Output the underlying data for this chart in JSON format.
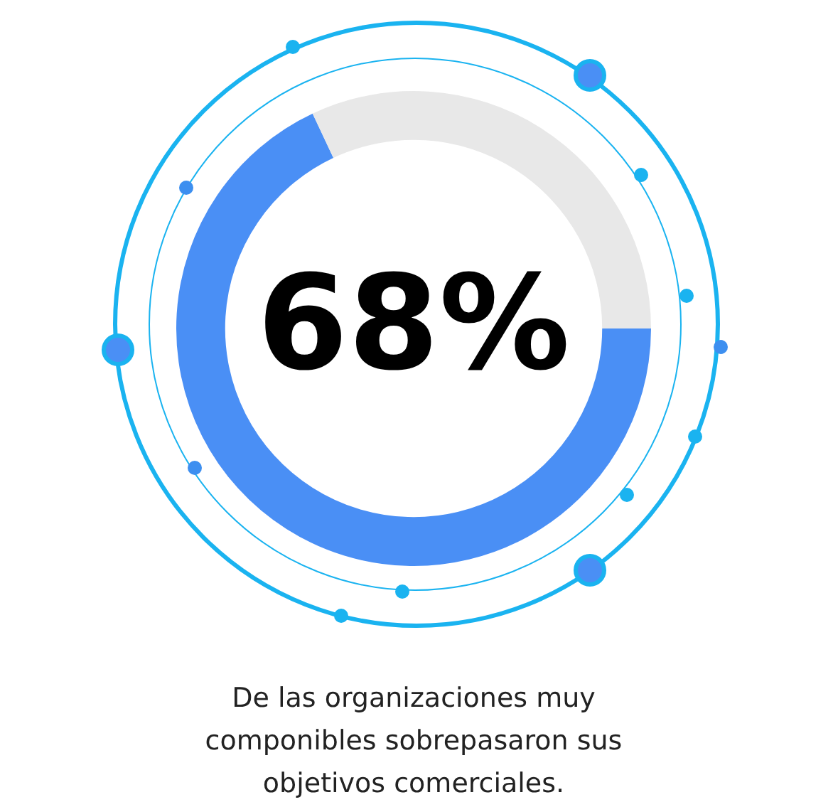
{
  "chart_data": {
    "type": "donut",
    "title": "68%",
    "categories": [
      null,
      null
    ],
    "values": [
      68,
      32
    ],
    "colors": [
      "#4a8ff5",
      "#e8e8e8"
    ],
    "annotations": [
      "De las organizaciones muy componibles sobrepasaron sus objetivos comerciales."
    ]
  }
}
